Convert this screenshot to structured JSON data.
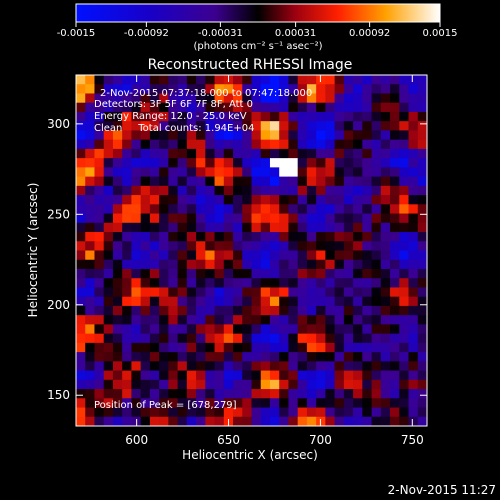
{
  "chart_data": {
    "type": "heatmap",
    "title": "Reconstructed RHESSI Image",
    "xlabel": "Heliocentric X (arcsec)",
    "ylabel": "Heliocentric Y (arcsec)",
    "xlim": [
      567,
      758
    ],
    "ylim": [
      133,
      327
    ],
    "x_ticks": [
      600,
      650,
      700,
      750
    ],
    "y_ticks": [
      150,
      200,
      250,
      300
    ],
    "colorbar": {
      "vmin": -0.0015,
      "vmax": 0.0015,
      "tick_values": [
        -0.0015,
        -0.00092,
        -0.00031,
        0.00031,
        0.00092,
        0.0015
      ],
      "tick_labels": [
        "-0.0015",
        "-0.00092",
        "-0.00031",
        "0.00031",
        "0.00092",
        "0.0015"
      ],
      "unit_label": "(photons cm⁻² s⁻¹ asec⁻²)"
    },
    "annotations": {
      "time_range": "2-Nov-2015 07:37:18.000 to 07:47:18.000",
      "detectors": "Detectors: 3F 5F 6F 7F 8F, Att 0",
      "energy_range": "Energy Range: 12.0 - 25.0 keV",
      "clean_counts": "Clean     Total counts: 1.94E+04",
      "peak": "Position of Peak = [678,279]"
    },
    "peak": {
      "x": 678,
      "y": 279
    },
    "grid_size": [
      38,
      38
    ]
  },
  "footer_timestamp": "2-Nov-2015 11:27"
}
